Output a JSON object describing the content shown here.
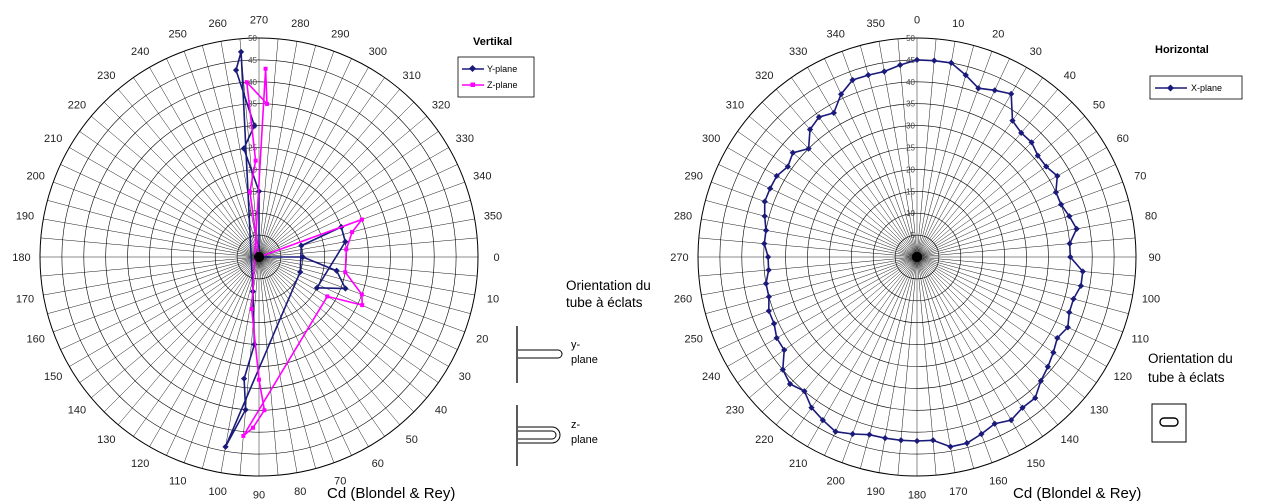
{
  "chart_data": [
    {
      "type": "polar-line",
      "title": "",
      "legend_title": "Vertikal",
      "angle_ticks": [
        "270",
        "280",
        "290",
        "300",
        "310",
        "320",
        "330",
        "340",
        "350",
        "0",
        "10",
        "20",
        "30",
        "40",
        "50",
        "60",
        "70",
        "80",
        "90",
        "100",
        "110",
        "120",
        "130",
        "140",
        "150",
        "160",
        "170",
        "180",
        "190",
        "200",
        "210",
        "220",
        "230",
        "240",
        "250",
        "260"
      ],
      "radial_ticks": [
        "0",
        "5",
        "10",
        "15",
        "20",
        "25",
        "30",
        "35",
        "40",
        "45",
        "50"
      ],
      "rlim": [
        0,
        50
      ],
      "legend_position": "top-right",
      "grid": true,
      "series": [
        {
          "name": "Y-plane",
          "color": "#1a1a7a",
          "marker": "diamond",
          "points": [
            [
              0,
              10
            ],
            [
              10,
              18
            ],
            [
              20,
              21
            ],
            [
              28,
              15
            ],
            [
              350,
              20
            ],
            [
              340,
              20
            ],
            [
              345,
              10
            ],
            [
              20,
              10
            ],
            [
              100,
              44
            ],
            [
              95,
              35
            ],
            [
              97,
              28
            ],
            [
              93,
              20
            ],
            [
              100,
              8
            ],
            [
              265,
              47
            ],
            [
              263,
              43
            ],
            [
              268,
              30
            ],
            [
              262,
              25
            ],
            [
              270,
              15
            ],
            [
              180,
              0
            ]
          ]
        },
        {
          "name": "Z-plane",
          "color": "#ff00ff",
          "marker": "square",
          "points": [
            [
              340,
              25
            ],
            [
              345,
              22
            ],
            [
              355,
              20
            ],
            [
              10,
              20
            ],
            [
              20,
              25
            ],
            [
              25,
              26
            ],
            [
              30,
              18
            ],
            [
              95,
              41
            ],
            [
              92,
              39
            ],
            [
              88,
              35
            ],
            [
              90,
              28
            ],
            [
              98,
              12
            ],
            [
              272,
              43
            ],
            [
              273,
              35
            ],
            [
              266,
              40
            ],
            [
              268,
              22
            ],
            [
              262,
              15
            ],
            [
              180,
              0
            ]
          ]
        }
      ]
    },
    {
      "type": "polar-line",
      "title": "",
      "legend_title": "Horizontal",
      "angle_ticks": [
        "0",
        "10",
        "20",
        "30",
        "40",
        "50",
        "60",
        "70",
        "80",
        "90",
        "100",
        "110",
        "120",
        "130",
        "140",
        "150",
        "160",
        "170",
        "180",
        "190",
        "200",
        "210",
        "220",
        "230",
        "240",
        "250",
        "260",
        "270",
        "280",
        "290",
        "300",
        "310",
        "320",
        "330",
        "340",
        "350"
      ],
      "radial_ticks": [
        "0",
        "5",
        "10",
        "15",
        "20",
        "25",
        "30",
        "35",
        "40",
        "45",
        "50"
      ],
      "rlim": [
        0,
        50
      ],
      "legend_position": "top-right",
      "grid": true,
      "series": [
        {
          "name": "X-plane",
          "color": "#1a1a7a",
          "marker": "diamond",
          "points": [
            [
              0,
              45
            ],
            [
              5,
              45
            ],
            [
              10,
              45
            ],
            [
              15,
              43
            ],
            [
              20,
              41
            ],
            [
              25,
              42
            ],
            [
              30,
              43
            ],
            [
              35,
              38
            ],
            [
              40,
              37
            ],
            [
              45,
              37
            ],
            [
              50,
              36
            ],
            [
              55,
              36
            ],
            [
              60,
              37
            ],
            [
              65,
              35
            ],
            [
              70,
              35
            ],
            [
              75,
              36
            ],
            [
              80,
              37
            ],
            [
              85,
              35
            ],
            [
              90,
              35
            ],
            [
              95,
              38
            ],
            [
              100,
              38
            ],
            [
              105,
              37
            ],
            [
              110,
              37
            ],
            [
              115,
              38
            ],
            [
              120,
              37
            ],
            [
              125,
              38
            ],
            [
              130,
              39
            ],
            [
              135,
              40
            ],
            [
              140,
              42
            ],
            [
              145,
              42
            ],
            [
              150,
              43
            ],
            [
              155,
              42
            ],
            [
              160,
              43
            ],
            [
              165,
              44
            ],
            [
              170,
              44
            ],
            [
              175,
              42
            ],
            [
              180,
              42
            ],
            [
              185,
              42
            ],
            [
              190,
              42
            ],
            [
              195,
              42
            ],
            [
              200,
              43
            ],
            [
              205,
              44
            ],
            [
              210,
              43
            ],
            [
              215,
              42
            ],
            [
              220,
              40
            ],
            [
              225,
              41
            ],
            [
              230,
              40
            ],
            [
              235,
              37
            ],
            [
              240,
              37
            ],
            [
              245,
              36
            ],
            [
              250,
              36
            ],
            [
              255,
              35
            ],
            [
              260,
              35
            ],
            [
              265,
              34
            ],
            [
              270,
              34
            ],
            [
              275,
              35
            ],
            [
              280,
              35
            ],
            [
              285,
              36
            ],
            [
              290,
              37
            ],
            [
              295,
              37
            ],
            [
              300,
              37
            ],
            [
              305,
              36
            ],
            [
              310,
              37
            ],
            [
              315,
              35
            ],
            [
              320,
              38
            ],
            [
              325,
              39
            ],
            [
              330,
              38
            ],
            [
              335,
              41
            ],
            [
              340,
              43
            ],
            [
              345,
              43
            ],
            [
              350,
              43
            ],
            [
              355,
              44
            ]
          ]
        }
      ]
    }
  ],
  "annotations": {
    "left_caption": "Cd (Blondel & Rey)",
    "right_caption": "Cd (Blondel & Rey)",
    "orientation_line1": "Orientation du",
    "orientation_line2": "tube à éclats",
    "orientation2_line1": "Orientation du",
    "orientation2_line2": "tube à éclats",
    "y_plane_line1": "y-",
    "y_plane_line2": "plane",
    "z_plane_line1": "z-",
    "z_plane_line2": "plane"
  }
}
